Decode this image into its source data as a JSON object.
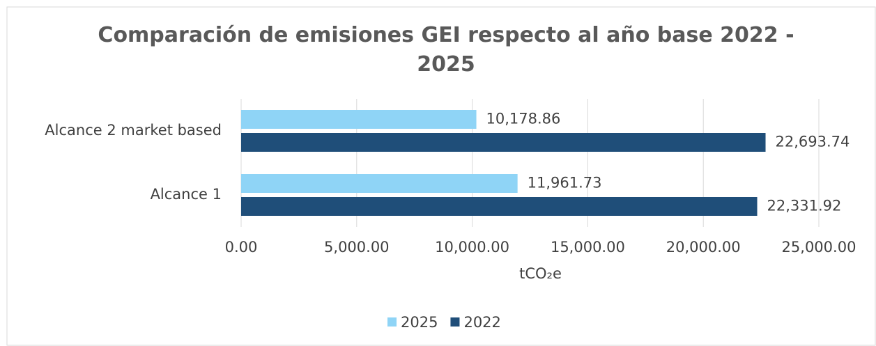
{
  "chart_data": {
    "type": "bar",
    "orientation": "horizontal",
    "title": "Comparación de emisiones GEI respecto al año base 2022 - 2025",
    "categories": [
      "Alcance 2 market based",
      "Alcance 1"
    ],
    "series": [
      {
        "name": "2025",
        "color": "#8fd4f6",
        "values": [
          10178.86,
          11961.73
        ],
        "value_labels": [
          "10,178.86",
          "11,961.73"
        ]
      },
      {
        "name": "2022",
        "color": "#1f4e79",
        "values": [
          22693.74,
          22331.92
        ],
        "value_labels": [
          "22,693.74",
          "22,331.92"
        ]
      }
    ],
    "xlabel": "tCO₂e",
    "xlim": [
      0,
      25000
    ],
    "xticks": [
      {
        "value": 0,
        "label": "0.00"
      },
      {
        "value": 5000,
        "label": "5,000.00"
      },
      {
        "value": 10000,
        "label": "10,000.00"
      },
      {
        "value": 15000,
        "label": "15,000.00"
      },
      {
        "value": 20000,
        "label": "20,000.00"
      },
      {
        "value": 25000,
        "label": "25,000.00"
      }
    ],
    "grid": true,
    "legend": "bottom"
  }
}
